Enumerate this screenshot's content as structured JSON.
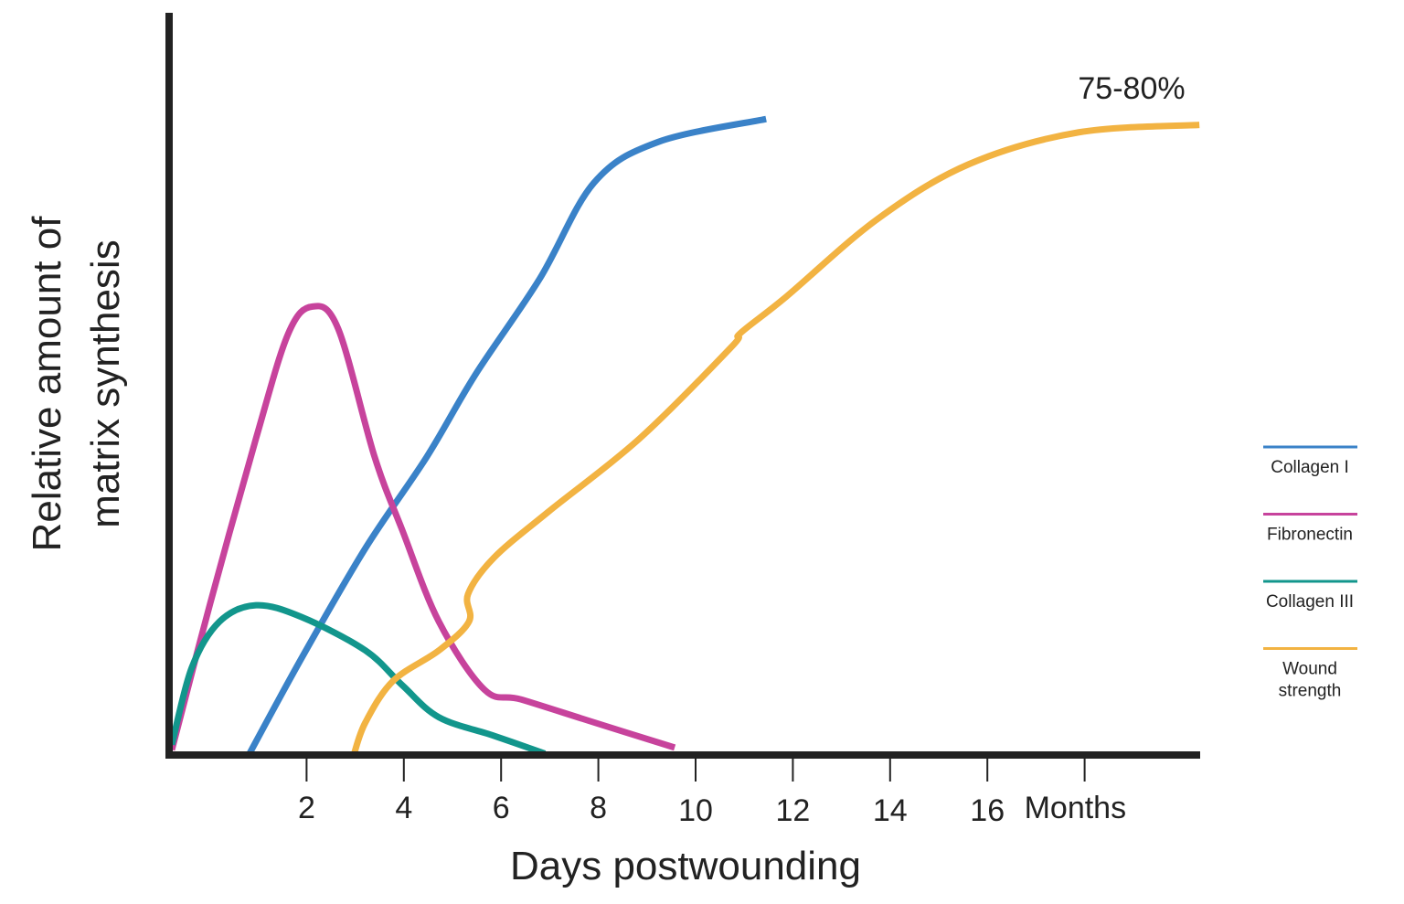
{
  "chart_data": {
    "type": "line",
    "title": "",
    "xlabel": "Days postwounding",
    "ylabel_lines": [
      "Relative amount of",
      "matrix synthesis"
    ],
    "x_ticks": [
      2,
      4,
      6,
      8,
      10,
      12,
      14,
      16
    ],
    "x_tick_labels": [
      "2",
      "4",
      "6",
      "8",
      "10",
      "12",
      "14",
      "16"
    ],
    "x_extra_tick": {
      "x": 18,
      "label": "Months"
    },
    "xlim": [
      -0.8,
      20.4
    ],
    "ylim": [
      0,
      100
    ],
    "grid": false,
    "legend_position": "right",
    "annotation": {
      "text": "75-80%",
      "series": "Wound strength"
    },
    "series": [
      {
        "name": "Collagen I",
        "color": "#3a82c8",
        "x": [
          0.81,
          1.9,
          3.21,
          4.47,
          5.47,
          6.79,
          7.91,
          9.23,
          11.45
        ],
        "y": [
          0,
          13.1,
          27.9,
          40.2,
          51.3,
          64.2,
          77.2,
          82.7,
          85.8
        ]
      },
      {
        "name": "Fibronectin",
        "color": "#c7439c",
        "x": [
          -0.77,
          0.02,
          0.96,
          1.62,
          2.12,
          2.65,
          3.4,
          3.97,
          4.72,
          5.66,
          6.41,
          7.91,
          9.57
        ],
        "y": [
          0.7,
          20.5,
          42.7,
          56.8,
          60.5,
          57.5,
          40.2,
          30.3,
          18.0,
          8.8,
          7.5,
          4.4,
          1.0
        ]
      },
      {
        "name": "Collagen III",
        "color": "#12968c",
        "x": [
          -0.77,
          -0.36,
          0.21,
          0.96,
          1.9,
          3.21,
          3.97,
          4.72,
          5.85,
          6.9
        ],
        "y": [
          1.4,
          11.8,
          18.0,
          20.2,
          18.6,
          14.1,
          9.4,
          5.1,
          2.6,
          0.2
        ]
      },
      {
        "name": "Wound strength",
        "color": "#f2b342",
        "x": [
          2.97,
          3.21,
          3.78,
          4.72,
          5.34,
          5.32,
          5.85,
          6.97,
          8.85,
          10.73,
          10.92,
          11.86,
          13.74,
          15.62,
          17.88,
          20.36
        ],
        "y": [
          0,
          4.4,
          10.0,
          14.1,
          18.0,
          21.7,
          26.6,
          32.8,
          42.7,
          55.0,
          56.9,
          61.8,
          72.3,
          79.7,
          84.0,
          85.0
        ]
      }
    ]
  }
}
